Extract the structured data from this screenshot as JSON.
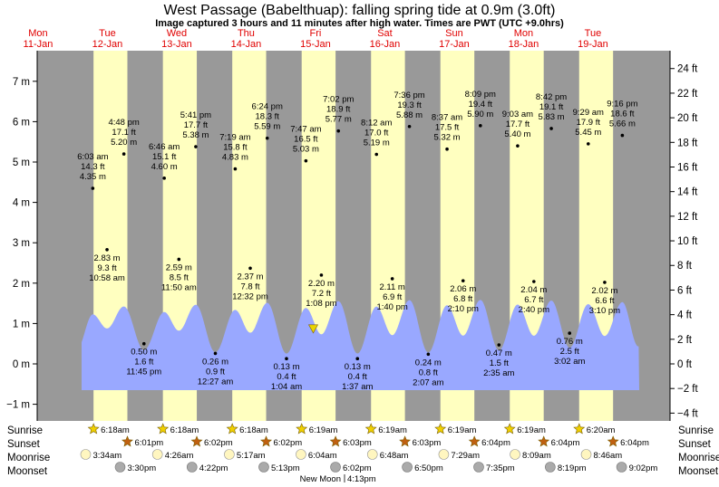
{
  "title": "West Passage (Babelthuap): falling  spring tide at 0.9m (3.0ft)",
  "subtitle": "Image captured 3 hours and 11 minutes after high water. Times are PWT (UTC +9.0hrs)",
  "days": [
    {
      "name": "Mon",
      "date": "11-Jan"
    },
    {
      "name": "Tue",
      "date": "12-Jan"
    },
    {
      "name": "Wed",
      "date": "13-Jan"
    },
    {
      "name": "Thu",
      "date": "14-Jan"
    },
    {
      "name": "Fri",
      "date": "15-Jan"
    },
    {
      "name": "Sat",
      "date": "16-Jan"
    },
    {
      "name": "Sun",
      "date": "17-Jan"
    },
    {
      "name": "Mon",
      "date": "18-Jan"
    },
    {
      "name": "Tue",
      "date": "19-Jan"
    }
  ],
  "colors": {
    "night": "#999999",
    "day": "#ffffc0",
    "water": "#99a8ff",
    "day_label": "#e00000",
    "marker": "#e8d400"
  },
  "chart_data": {
    "type": "area",
    "y_left_unit": "m",
    "y_right_unit": "ft",
    "y_left_ticks": [
      -1,
      0,
      1,
      2,
      3,
      4,
      5,
      6,
      7
    ],
    "y_left_tick_labels": [
      "−1 m",
      "0 m",
      "1 m",
      "2 m",
      "3 m",
      "4 m",
      "5 m",
      "6 m",
      "7 m"
    ],
    "y_right_ticks": [
      -4,
      -2,
      0,
      2,
      4,
      6,
      8,
      10,
      12,
      14,
      16,
      18,
      20,
      22,
      24
    ],
    "y_right_tick_labels": [
      "−4 ft",
      "−2 ft",
      "0 ft",
      "2 ft",
      "4 ft",
      "6 ft",
      "8 ft",
      "10 ft",
      "12 ft",
      "14 ft",
      "16 ft",
      "18 ft",
      "20 ft",
      "22 ft",
      "24 ft"
    ],
    "ylim": [
      -1.3,
      7.4
    ],
    "current_level_m": 0.9,
    "current_time": "15-Jan 10:20",
    "events": [
      {
        "day": 1,
        "time": "6:03 am",
        "ft": "14.3 ft",
        "m": "4.35 m",
        "type": "high",
        "hour": 6.05,
        "height": 4.35
      },
      {
        "day": 1,
        "time": "10:58 am",
        "ft": "9.3 ft",
        "m": "2.83 m",
        "type": "low",
        "hour": 10.97,
        "height": 2.83
      },
      {
        "day": 1,
        "time": "4:48 pm",
        "ft": "17.1 ft",
        "m": "5.20 m",
        "type": "high",
        "hour": 16.8,
        "height": 5.2
      },
      {
        "day": 1,
        "time": "11:45 pm",
        "ft": "1.6 ft",
        "m": "0.50 m",
        "type": "low",
        "hour": 23.75,
        "height": 0.5
      },
      {
        "day": 2,
        "time": "6:46 am",
        "ft": "15.1 ft",
        "m": "4.60 m",
        "type": "high",
        "hour": 6.77,
        "height": 4.6
      },
      {
        "day": 2,
        "time": "11:50 am",
        "ft": "8.5 ft",
        "m": "2.59 m",
        "type": "low",
        "hour": 11.83,
        "height": 2.59
      },
      {
        "day": 2,
        "time": "5:41 pm",
        "ft": "17.7 ft",
        "m": "5.38 m",
        "type": "high",
        "hour": 17.68,
        "height": 5.38
      },
      {
        "day": 3,
        "time": "12:27 am",
        "ft": "0.9 ft",
        "m": "0.26 m",
        "type": "low",
        "hour": 0.45,
        "height": 0.26
      },
      {
        "day": 3,
        "time": "7:19 am",
        "ft": "15.8 ft",
        "m": "4.83 m",
        "type": "high",
        "hour": 7.32,
        "height": 4.83
      },
      {
        "day": 3,
        "time": "12:32 pm",
        "ft": "7.8 ft",
        "m": "2.37 m",
        "type": "low",
        "hour": 12.53,
        "height": 2.37
      },
      {
        "day": 3,
        "time": "6:24 pm",
        "ft": "18.3 ft",
        "m": "5.59 m",
        "type": "high",
        "hour": 18.4,
        "height": 5.59
      },
      {
        "day": 4,
        "time": "1:04 am",
        "ft": "0.4 ft",
        "m": "0.13 m",
        "type": "low",
        "hour": 1.07,
        "height": 0.13
      },
      {
        "day": 4,
        "time": "7:47 am",
        "ft": "16.5 ft",
        "m": "5.03 m",
        "type": "high",
        "hour": 7.78,
        "height": 5.03
      },
      {
        "day": 4,
        "time": "1:08 pm",
        "ft": "7.2 ft",
        "m": "2.20 m",
        "type": "low",
        "hour": 13.13,
        "height": 2.2
      },
      {
        "day": 4,
        "time": "7:02 pm",
        "ft": "18.9 ft",
        "m": "5.77 m",
        "type": "high",
        "hour": 19.03,
        "height": 5.77
      },
      {
        "day": 5,
        "time": "1:37 am",
        "ft": "0.4 ft",
        "m": "0.13 m",
        "type": "low",
        "hour": 1.62,
        "height": 0.13
      },
      {
        "day": 5,
        "time": "8:12 am",
        "ft": "17.0 ft",
        "m": "5.19 m",
        "type": "high",
        "hour": 8.2,
        "height": 5.19
      },
      {
        "day": 5,
        "time": "1:40 pm",
        "ft": "6.9 ft",
        "m": "2.11 m",
        "type": "low",
        "hour": 13.67,
        "height": 2.11
      },
      {
        "day": 5,
        "time": "7:36 pm",
        "ft": "19.3 ft",
        "m": "5.88 m",
        "type": "high",
        "hour": 19.6,
        "height": 5.88
      },
      {
        "day": 6,
        "time": "2:07 am",
        "ft": "0.8 ft",
        "m": "0.24 m",
        "type": "low",
        "hour": 2.12,
        "height": 0.24
      },
      {
        "day": 6,
        "time": "8:37 am",
        "ft": "17.5 ft",
        "m": "5.32 m",
        "type": "high",
        "hour": 8.62,
        "height": 5.32
      },
      {
        "day": 6,
        "time": "2:10 pm",
        "ft": "6.8 ft",
        "m": "2.06 m",
        "type": "low",
        "hour": 14.17,
        "height": 2.06
      },
      {
        "day": 6,
        "time": "8:09 pm",
        "ft": "19.4 ft",
        "m": "5.90 m",
        "type": "high",
        "hour": 20.15,
        "height": 5.9
      },
      {
        "day": 7,
        "time": "2:35 am",
        "ft": "1.5 ft",
        "m": "0.47 m",
        "type": "low",
        "hour": 2.58,
        "height": 0.47
      },
      {
        "day": 7,
        "time": "9:03 am",
        "ft": "17.7 ft",
        "m": "5.40 m",
        "type": "high",
        "hour": 9.05,
        "height": 5.4
      },
      {
        "day": 7,
        "time": "2:40 pm",
        "ft": "6.7 ft",
        "m": "2.04 m",
        "type": "low",
        "hour": 14.67,
        "height": 2.04
      },
      {
        "day": 7,
        "time": "8:42 pm",
        "ft": "19.1 ft",
        "m": "5.83 m",
        "type": "high",
        "hour": 20.7,
        "height": 5.83
      },
      {
        "day": 8,
        "time": "3:02 am",
        "ft": "2.5 ft",
        "m": "0.76 m",
        "type": "low",
        "hour": 3.03,
        "height": 0.76
      },
      {
        "day": 8,
        "time": "9:29 am",
        "ft": "17.9 ft",
        "m": "5.45 m",
        "type": "high",
        "hour": 9.48,
        "height": 5.45
      },
      {
        "day": 8,
        "time": "3:10 pm",
        "ft": "6.6 ft",
        "m": "2.02 m",
        "type": "low",
        "hour": 15.17,
        "height": 2.02
      },
      {
        "day": 8,
        "time": "9:16 pm",
        "ft": "18.6 ft",
        "m": "5.66 m",
        "type": "high",
        "hour": 21.27,
        "height": 5.66
      }
    ]
  },
  "rows": {
    "sunrise": "Sunrise",
    "sunset": "Sunset",
    "moonrise": "Moonrise",
    "moonset": "Moonset"
  },
  "sun": [
    {
      "rise": "6:18am",
      "set": "6:01pm",
      "rise_h": 6.3,
      "set_h": 18.02
    },
    {
      "rise": "6:18am",
      "set": "6:02pm",
      "rise_h": 6.3,
      "set_h": 18.03
    },
    {
      "rise": "6:18am",
      "set": "6:02pm",
      "rise_h": 6.3,
      "set_h": 18.03
    },
    {
      "rise": "6:19am",
      "set": "6:03pm",
      "rise_h": 6.32,
      "set_h": 18.05
    },
    {
      "rise": "6:19am",
      "set": "6:03pm",
      "rise_h": 6.32,
      "set_h": 18.05
    },
    {
      "rise": "6:19am",
      "set": "6:04pm",
      "rise_h": 6.32,
      "set_h": 18.07
    },
    {
      "rise": "6:19am",
      "set": "6:04pm",
      "rise_h": 6.32,
      "set_h": 18.07
    },
    {
      "rise": "6:20am",
      "set": "6:04pm",
      "rise_h": 6.33,
      "set_h": 18.07
    }
  ],
  "moon": [
    {
      "rise": "3:34am",
      "set": "3:30pm",
      "rise_h": 3.57,
      "set_h": 15.5
    },
    {
      "rise": "4:26am",
      "set": "4:22pm",
      "rise_h": 4.43,
      "set_h": 16.37
    },
    {
      "rise": "5:17am",
      "set": "5:13pm",
      "rise_h": 5.28,
      "set_h": 17.22
    },
    {
      "rise": "6:04am",
      "set": "6:02pm",
      "rise_h": 6.07,
      "set_h": 18.03
    },
    {
      "rise": "6:48am",
      "set": "6:50pm",
      "rise_h": 6.8,
      "set_h": 18.83
    },
    {
      "rise": "7:29am",
      "set": "7:35pm",
      "rise_h": 7.48,
      "set_h": 19.58
    },
    {
      "rise": "8:09am",
      "set": "8:19pm",
      "rise_h": 8.15,
      "set_h": 20.32
    },
    {
      "rise": "8:46am",
      "set": "9:02pm",
      "rise_h": 8.77,
      "set_h": 21.03
    }
  ],
  "new_moon": {
    "label": "New Moon",
    "time": "4:13pm"
  }
}
